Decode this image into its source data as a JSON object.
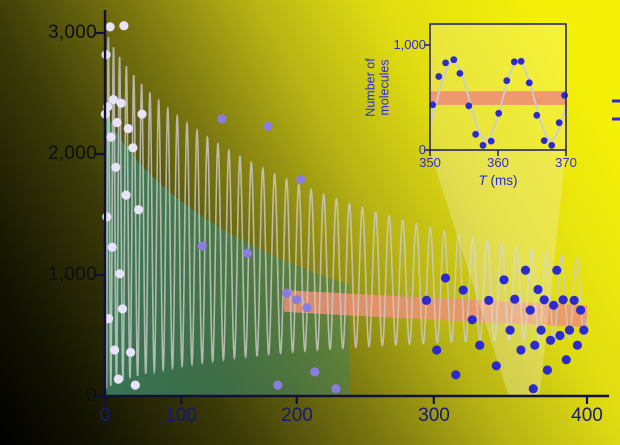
{
  "palette": {
    "background_gradient": [
      "#000000",
      "#3c3c08",
      "#7c7810",
      "#b8b414",
      "#e0dc12",
      "#f4f008"
    ],
    "axis": "#10103a",
    "main_ytick_text": "#0e0e12",
    "main_xtick_text": "#181875",
    "inset_text": "#2b2bd8",
    "inset_frame": "#1a1a70",
    "curve_gray": "#cccccc",
    "green_fill": "#3e8462",
    "orange_fill": "#ee8f74",
    "point_colors": [
      "#e7e3f8",
      "#8b7ce0",
      "#2b2bd0"
    ]
  },
  "chart_data": {
    "type": "scatter",
    "description": "Decaying coherent oscillation of molecule number versus evolution time, with sinusoidal fit curve, green decay envelope, orange mean-fit band, scattered data points, and a zoomed inset over T = 350-370 ms",
    "main": {
      "xlim": [
        0,
        400
      ],
      "ylim": [
        0,
        3100
      ],
      "x_ticks": [
        {
          "value": 0,
          "label": "0"
        },
        {
          "value": 100,
          "label": "100"
        },
        {
          "value": 200,
          "label": "200"
        },
        {
          "value": 300,
          "label": "300"
        },
        {
          "value": 400,
          "label": "400"
        }
      ],
      "y_ticks": [
        {
          "value": 3000,
          "label": "3,000"
        },
        {
          "value": 2000,
          "label": "2,000"
        },
        {
          "value": 1000,
          "label": "1,000"
        },
        {
          "value": 0,
          "label": "0"
        }
      ],
      "oscillation_fit": {
        "period_ms": 9.6,
        "amplitude0": 1500,
        "amplitude_tau_ms": 260,
        "offset_base": 50,
        "offset_rise": 500,
        "offset_tau_ms": 200,
        "phase": "cosine, maximum at t=0"
      },
      "green_envelope": {
        "n0": 2400,
        "tau_ms": 250,
        "t_end_ms": 240
      },
      "orange_band": {
        "t_start_ms": 190,
        "t_end_ms": 400,
        "center_at_0": 900,
        "center_slope_per_ms": -0.6,
        "half_width": 90
      },
      "points": [
        [
          2,
          2330,
          0
        ],
        [
          4,
          2820,
          0
        ],
        [
          6,
          1480,
          0
        ],
        [
          8,
          2390,
          0
        ],
        [
          10,
          640,
          0
        ],
        [
          13,
          3050,
          0
        ],
        [
          15,
          2140,
          0
        ],
        [
          17,
          1230,
          0
        ],
        [
          19,
          2450,
          0
        ],
        [
          21,
          380,
          0
        ],
        [
          23,
          1890,
          0
        ],
        [
          25,
          2260,
          0
        ],
        [
          27,
          140,
          0
        ],
        [
          29,
          1010,
          0
        ],
        [
          31,
          2420,
          0
        ],
        [
          33,
          720,
          0
        ],
        [
          35,
          3060,
          0
        ],
        [
          38,
          1660,
          0
        ],
        [
          41,
          2210,
          0
        ],
        [
          44,
          360,
          0
        ],
        [
          47,
          2050,
          0
        ],
        [
          50,
          90,
          0
        ],
        [
          54,
          1540,
          0
        ],
        [
          58,
          2330,
          0
        ],
        [
          120,
          1240,
          1
        ],
        [
          138,
          2290,
          1
        ],
        [
          160,
          1180,
          1
        ],
        [
          177,
          2230,
          1
        ],
        [
          185,
          90,
          1
        ],
        [
          192,
          850,
          1
        ],
        [
          200,
          795,
          1
        ],
        [
          203,
          1790,
          1
        ],
        [
          208,
          730,
          1
        ],
        [
          214,
          200,
          1
        ],
        [
          230,
          60,
          1
        ],
        [
          295,
          790,
          2
        ],
        [
          302,
          380,
          2
        ],
        [
          308,
          975,
          2
        ],
        [
          315,
          175,
          2
        ],
        [
          320,
          875,
          2
        ],
        [
          326,
          630,
          2
        ],
        [
          331,
          420,
          2
        ],
        [
          337,
          790,
          2
        ],
        [
          342,
          250,
          2
        ],
        [
          347,
          960,
          2
        ],
        [
          351,
          545,
          2
        ],
        [
          354,
          800,
          2
        ],
        [
          358,
          380,
          2
        ],
        [
          361,
          1040,
          2
        ],
        [
          364,
          710,
          2
        ],
        [
          366,
          60,
          2
        ],
        [
          367,
          420,
          2
        ],
        [
          369,
          880,
          2
        ],
        [
          371,
          545,
          2
        ],
        [
          373,
          795,
          2
        ],
        [
          375,
          215,
          2
        ],
        [
          377,
          460,
          2
        ],
        [
          379,
          750,
          2
        ],
        [
          381,
          1040,
          2
        ],
        [
          383,
          500,
          2
        ],
        [
          385,
          795,
          2
        ],
        [
          387,
          300,
          2
        ],
        [
          389,
          545,
          2
        ],
        [
          392,
          790,
          2
        ],
        [
          394,
          420,
          2
        ],
        [
          396,
          710,
          2
        ],
        [
          398,
          545,
          2
        ]
      ]
    },
    "inset": {
      "xlabel_var": "T",
      "xlabel_unit": " (ms)",
      "ylabel": "Number of molecules",
      "ylabel_lines": [
        "Number of",
        "molecules"
      ],
      "xlim": [
        350,
        370
      ],
      "ylim": [
        0,
        1200
      ],
      "x_ticks": [
        {
          "value": 350,
          "label": "350"
        },
        {
          "value": 360,
          "label": "360"
        },
        {
          "value": 370,
          "label": "370"
        }
      ],
      "y_ticks": [
        {
          "value": 0,
          "label": "0"
        },
        {
          "value": 1000,
          "label": "1,000"
        }
      ],
      "fit": {
        "period_ms": 9.6,
        "mean": 470,
        "amplitude": 372,
        "peak_at_ms": 353.4
      },
      "orange_band": {
        "low": 430,
        "high": 560
      },
      "points": [
        [
          350.4,
          430
        ],
        [
          351.3,
          700
        ],
        [
          352.3,
          830
        ],
        [
          353.5,
          860
        ],
        [
          354.4,
          730
        ],
        [
          355.7,
          420
        ],
        [
          356.7,
          150
        ],
        [
          357.8,
          45
        ],
        [
          359.0,
          85
        ],
        [
          360.1,
          350
        ],
        [
          361.3,
          660
        ],
        [
          362.4,
          840
        ],
        [
          363.4,
          845
        ],
        [
          364.6,
          640
        ],
        [
          365.7,
          330
        ],
        [
          366.8,
          90
        ],
        [
          367.9,
          45
        ],
        [
          369.0,
          260
        ],
        [
          369.8,
          520
        ]
      ]
    }
  }
}
